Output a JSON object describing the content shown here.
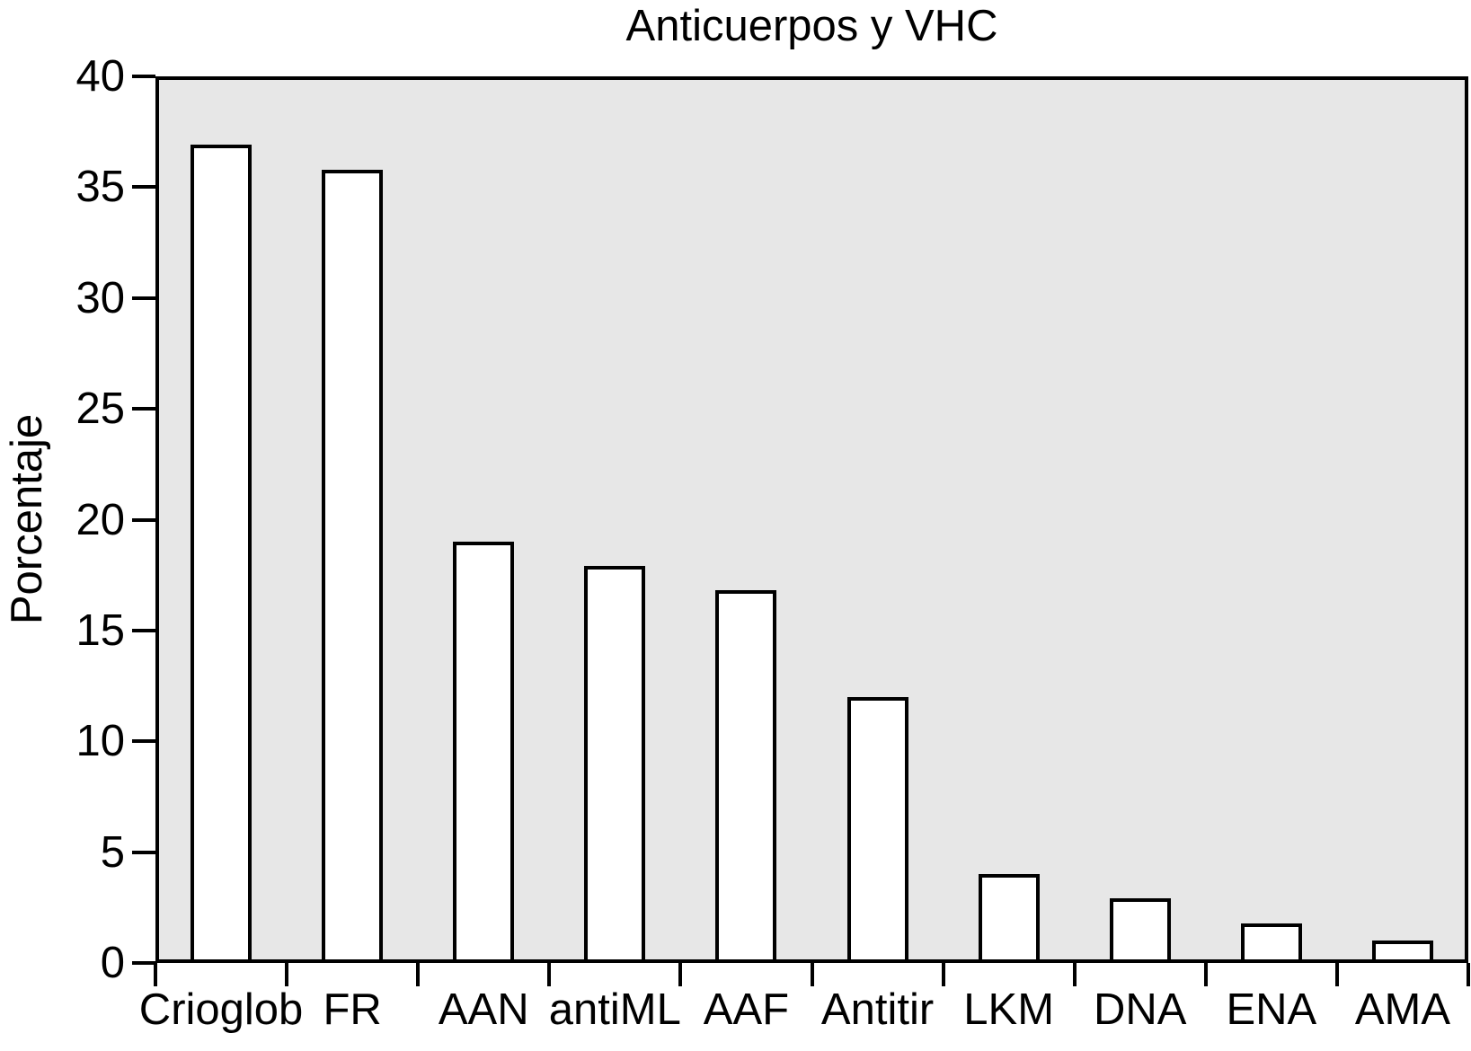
{
  "figure": {
    "title": "Anticuerpos y VHC",
    "y_axis_label": "Porcentaje"
  },
  "chart_data": {
    "type": "bar",
    "title": "Anticuerpos y VHC",
    "xlabel": "",
    "ylabel": "Porcentaje",
    "categories": [
      "Crioglob",
      "FR",
      "AAN",
      "antiML",
      "AAF",
      "Antitir",
      "LKM",
      "DNA",
      "ENA",
      "AMA"
    ],
    "values": [
      36.9,
      35.8,
      19,
      17.9,
      16.8,
      12,
      4,
      2.9,
      1.8,
      1
    ],
    "ylim": [
      0,
      40
    ],
    "yticks": [
      0,
      5,
      10,
      15,
      20,
      25,
      30,
      35,
      40
    ],
    "grid": false,
    "legend_position": "none",
    "colors": {
      "plot_background": "#e7e7e7",
      "bar_fill": "#ffffff",
      "line": "#000000",
      "text": "#000000"
    }
  }
}
